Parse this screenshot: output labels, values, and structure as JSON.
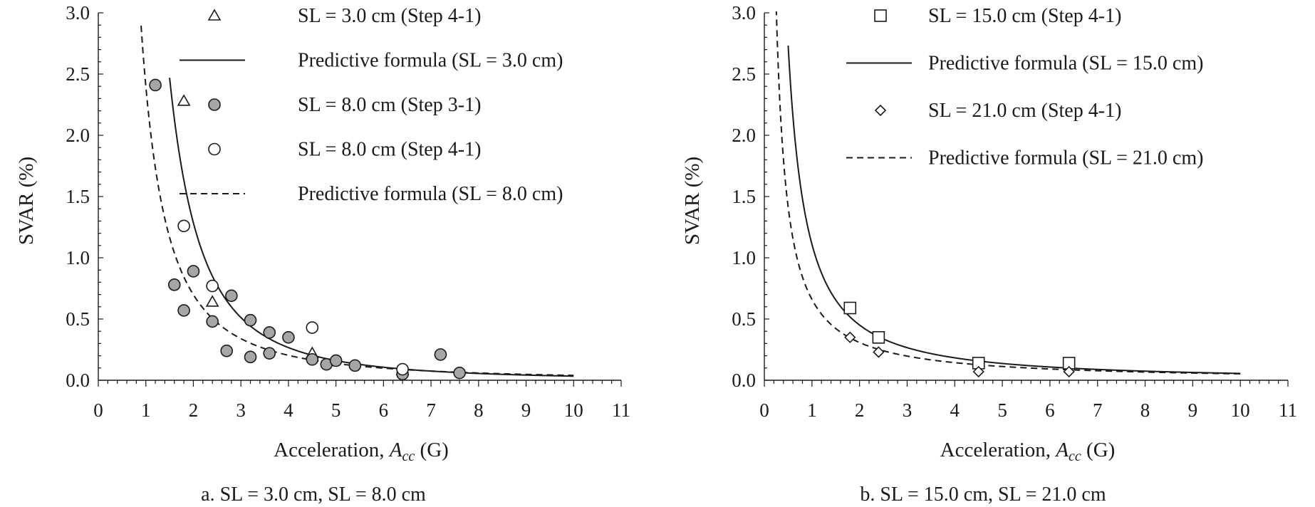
{
  "chart_data": [
    {
      "type": "scatter",
      "panel_caption": "a. SL = 3.0 cm, SL = 8.0 cm",
      "xlabel_prefix": "Acceleration, ",
      "xlabel_var": "A",
      "xlabel_sub": "cc",
      "xlabel_suffix": " (G)",
      "ylabel": "SVAR (%)",
      "xlim": [
        0,
        11
      ],
      "ylim": [
        0,
        3.0
      ],
      "x_ticks": [
        "0",
        "1",
        "2",
        "3",
        "4",
        "5",
        "6",
        "7",
        "8",
        "9",
        "10",
        "11"
      ],
      "y_ticks": [
        "0.0",
        "0.5",
        "1.0",
        "1.5",
        "2.0",
        "2.5",
        "3.0"
      ],
      "grid": false,
      "legend_position": "top-right",
      "series": [
        {
          "name": "SL = 3.0 cm (Step 4-1)",
          "kind": "points",
          "marker": "triangle-open",
          "x": [
            1.8,
            2.4,
            4.5,
            6.4
          ],
          "y": [
            2.28,
            0.64,
            0.22,
            0.08
          ]
        },
        {
          "name": "Predictive formula (SL = 3.0 cm)",
          "kind": "line",
          "style": "solid",
          "formula_coefficient": 6.2,
          "formula_exponent": -2.27,
          "x_range": [
            1.5,
            10
          ]
        },
        {
          "name": "SL = 8.0 cm (Step 3-1)",
          "kind": "points",
          "marker": "circle-filled",
          "x": [
            1.2,
            1.6,
            1.8,
            2.0,
            2.4,
            2.7,
            2.8,
            3.2,
            3.2,
            3.6,
            3.6,
            4.0,
            4.5,
            4.8,
            5.0,
            5.4,
            6.4,
            7.2,
            7.6
          ],
          "y": [
            2.41,
            0.78,
            0.57,
            0.89,
            0.48,
            0.24,
            0.69,
            0.49,
            0.19,
            0.39,
            0.22,
            0.35,
            0.17,
            0.13,
            0.16,
            0.12,
            0.05,
            0.21,
            0.06
          ]
        },
        {
          "name": "SL = 8.0 cm (Step 4-1)",
          "kind": "points",
          "marker": "circle-open",
          "x": [
            1.8,
            2.4,
            4.5,
            6.4
          ],
          "y": [
            1.26,
            0.77,
            0.43,
            0.09
          ]
        },
        {
          "name": "Predictive formula (SL = 8.0 cm)",
          "kind": "line",
          "style": "dashed",
          "formula_coefficient": 2.4,
          "formula_exponent": -1.78,
          "x_range": [
            0.9,
            10
          ]
        }
      ]
    },
    {
      "type": "scatter",
      "panel_caption": "b. SL = 15.0 cm, SL = 21.0 cm",
      "xlabel_prefix": "Acceleration, ",
      "xlabel_var": "A",
      "xlabel_sub": "cc",
      "xlabel_suffix": " (G)",
      "ylabel": "SVAR (%)",
      "xlim": [
        0,
        11
      ],
      "ylim": [
        0,
        3.0
      ],
      "x_ticks": [
        "0",
        "1",
        "2",
        "3",
        "4",
        "5",
        "6",
        "7",
        "8",
        "9",
        "10",
        "11"
      ],
      "y_ticks": [
        "0.0",
        "0.5",
        "1.0",
        "1.5",
        "2.0",
        "2.5",
        "3.0"
      ],
      "grid": false,
      "legend_position": "top-right",
      "series": [
        {
          "name": "SL = 15.0 cm (Step 4-1)",
          "kind": "points",
          "marker": "square-open",
          "x": [
            1.8,
            2.4,
            4.5,
            6.4
          ],
          "y": [
            0.59,
            0.35,
            0.14,
            0.14
          ]
        },
        {
          "name": "Predictive formula (SL = 15.0 cm)",
          "kind": "line",
          "style": "solid",
          "formula_coefficient": 1.11,
          "formula_exponent": -1.3,
          "x_range": [
            0.5,
            10
          ]
        },
        {
          "name": "SL = 21.0 cm (Step 4-1)",
          "kind": "points",
          "marker": "diamond-open",
          "x": [
            1.8,
            2.4,
            4.5,
            6.4
          ],
          "y": [
            0.35,
            0.23,
            0.07,
            0.07
          ]
        },
        {
          "name": "Predictive formula (SL = 21.0 cm)",
          "kind": "line",
          "style": "dashed",
          "formula_coefficient": 0.66,
          "formula_exponent": -1.1,
          "x_range": [
            0.25,
            10
          ]
        }
      ]
    }
  ]
}
